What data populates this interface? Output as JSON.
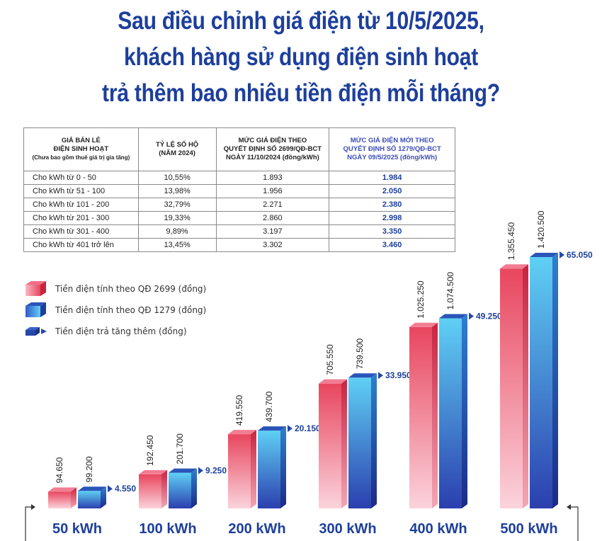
{
  "title": {
    "line1": "Sau điều chỉnh giá điện từ 10/5/2025,",
    "line2": "khách hàng sử dụng điện sinh hoạt",
    "line3": "trả thêm bao nhiêu tiền điện mỗi tháng?"
  },
  "table": {
    "headers": {
      "col1_line1": "GIÁ BÁN LẺ",
      "col1_line2": "ĐIỆN SINH HOẠT",
      "col1_note": "(Chưa bao gồm thuế giá trị gia tăng)",
      "col2_line1": "TỶ LỆ SỐ HỘ",
      "col2_line2": "(NĂM 2024)",
      "col3_line1": "MỨC GIÁ ĐIỆN THEO",
      "col3_line2": "QUYẾT ĐỊNH SỐ 2699/QĐ-BCT",
      "col3_line3": "NGÀY 11/10/2024 (đồng/kWh)",
      "col4_line1": "MỨC GIÁ ĐIỆN MỚI THEO",
      "col4_line2": "QUYẾT ĐỊNH SỐ 1279/QĐ-BCT",
      "col4_line3": "NGÀY 09/5/2025 (đồng/kWh)"
    },
    "rows": [
      {
        "tier": "Cho kWh từ 0 - 50",
        "share": "10,55%",
        "old_price": "1.893",
        "new_price": "1.984"
      },
      {
        "tier": "Cho kWh từ  51 - 100",
        "share": "13,98%",
        "old_price": "1.956",
        "new_price": "2.050"
      },
      {
        "tier": "Cho kWh từ 101 - 200",
        "share": "32,79%",
        "old_price": "2.271",
        "new_price": "2.380"
      },
      {
        "tier": "Cho kWh từ 201 - 300",
        "share": "19,33%",
        "old_price": "2.860",
        "new_price": "2.998"
      },
      {
        "tier": "Cho kWh từ 301 - 400",
        "share": "9,89%",
        "old_price": "3.197",
        "new_price": "3.350"
      },
      {
        "tier": "Cho kWh từ 401 trở lên",
        "share": "13,45%",
        "old_price": "3.302",
        "new_price": "3.460"
      }
    ]
  },
  "legend": {
    "items": [
      {
        "label": "Tiền điện tính theo QĐ 2699 (đồng)",
        "color": "#e8465e"
      },
      {
        "label": "Tiền điện tính theo QĐ 1279 (đồng)",
        "color": "#3fb4e8"
      },
      {
        "label": "Tiền điện trả tăng thêm (đồng)",
        "color": "#2548a6"
      }
    ]
  },
  "chart_data": {
    "type": "bar",
    "categories": [
      "50 kWh",
      "100 kWh",
      "200 kWh",
      "300 kWh",
      "400 kWh",
      "500 kWh"
    ],
    "series": [
      {
        "name": "Tiền điện tính theo QĐ 2699 (đồng)",
        "values": [
          94650,
          192450,
          419550,
          705550,
          1025250,
          1355450
        ],
        "labels": [
          "94.650",
          "192.450",
          "419.550",
          "705.550",
          "1.025.250",
          "1.355.450"
        ],
        "color": "#e8465e"
      },
      {
        "name": "Tiền điện tính theo QĐ 1279 (đồng)",
        "values": [
          99200,
          201700,
          439700,
          739500,
          1074500,
          1420500
        ],
        "labels": [
          "99.200",
          "201.700",
          "439.700",
          "739.500",
          "1.074.500",
          "1.420.500"
        ],
        "color": "#3fb4e8"
      },
      {
        "name": "Tiền điện trả tăng thêm (đồng)",
        "values": [
          4550,
          9250,
          20150,
          33950,
          49250,
          65050
        ],
        "labels": [
          "4.550",
          "9.250",
          "20.150",
          "33.950",
          "49.250",
          "65.050"
        ],
        "color": "#2548a6"
      }
    ],
    "title": "",
    "xlabel": "",
    "ylabel": "",
    "grid": false,
    "legend_position": "top-left"
  }
}
